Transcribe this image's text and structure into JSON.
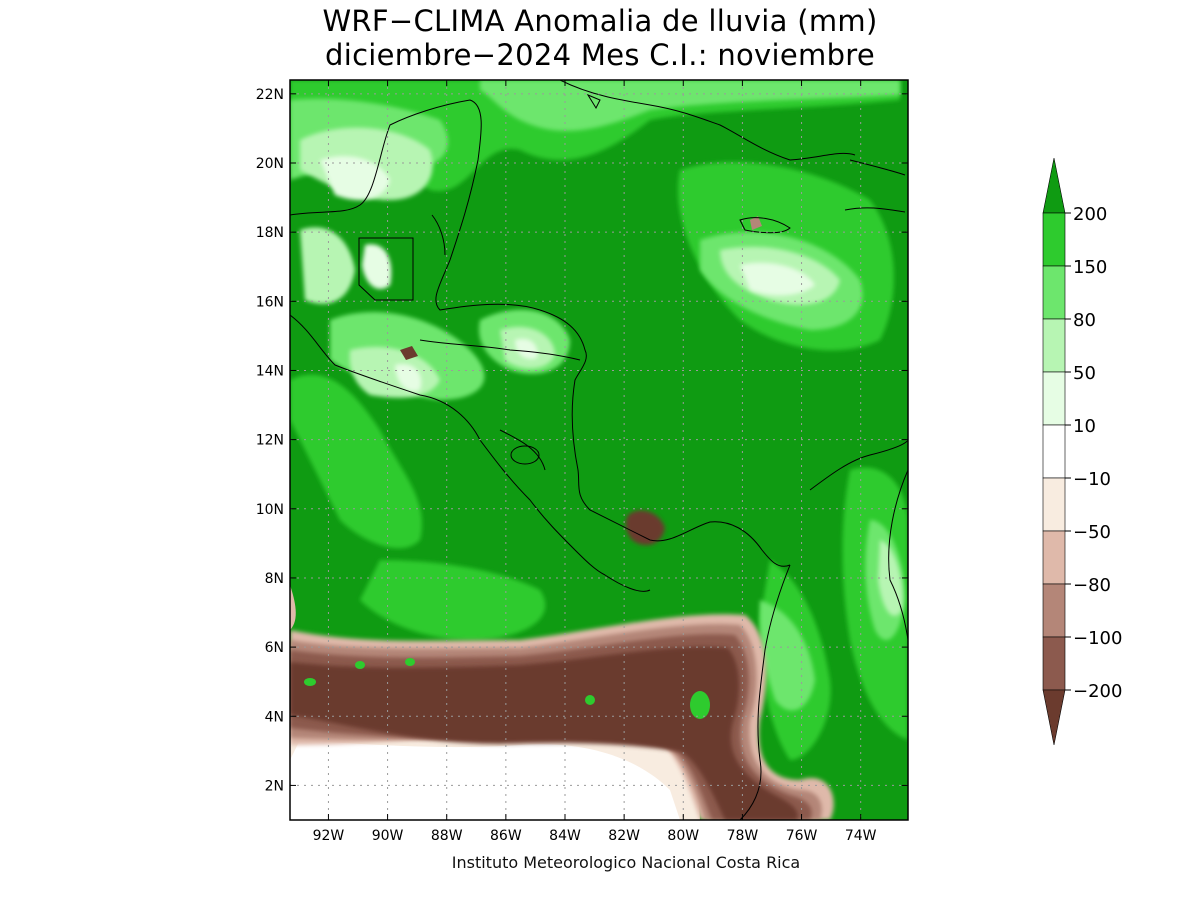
{
  "title_line1": "WRF−CLIMA Anomalia de lluvia (mm)",
  "title_line2": "diciembre−2024 Mes C.I.: noviembre",
  "credit": "Instituto Meteorologico Nacional Costa Rica",
  "map": {
    "lon_range": [
      -93.3,
      -72.4
    ],
    "lat_range": [
      1.0,
      22.4
    ],
    "lon_ticks": [
      "92W",
      "90W",
      "88W",
      "86W",
      "84W",
      "82W",
      "80W",
      "78W",
      "76W",
      "74W"
    ],
    "lat_ticks": [
      "2N",
      "4N",
      "6N",
      "8N",
      "10N",
      "12N",
      "14N",
      "16N",
      "18N",
      "20N",
      "22N"
    ],
    "grid": "dotted",
    "background_color": "#0f9b12"
  },
  "colorbar": {
    "labels": [
      "200",
      "150",
      "80",
      "50",
      "10",
      "−10",
      "−50",
      "−80",
      "−100",
      "−200"
    ],
    "colors": [
      "#0f9b12",
      "#2ecb2e",
      "#6de66d",
      "#b7f5b3",
      "#e6fde4",
      "#ffffff",
      "#f8ece0",
      "#dfb9aa",
      "#b48678",
      "#8c5a4e",
      "#6b3b2e"
    ]
  }
}
